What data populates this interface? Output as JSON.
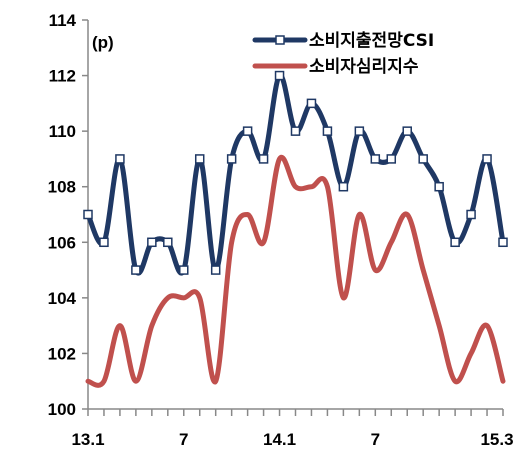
{
  "chart_data": {
    "type": "line",
    "unit_label": "(p)",
    "ylim": [
      100,
      114
    ],
    "yticks": [
      "100",
      "102",
      "104",
      "106",
      "108",
      "110",
      "112",
      "114"
    ],
    "x_tick_labels": [
      {
        "index": 0,
        "label": "13.1"
      },
      {
        "index": 6,
        "label": "7"
      },
      {
        "index": 12,
        "label": "14.1"
      },
      {
        "index": 18,
        "label": "7"
      },
      {
        "index": 26,
        "label": "15.3"
      }
    ],
    "x_count": 27,
    "grid": false,
    "legend_position": "top-right",
    "series": [
      {
        "name": "소비지출전망CSI",
        "color": "#1f3864",
        "markers": true,
        "values": [
          107,
          106,
          109,
          105,
          106,
          106,
          105,
          109,
          105,
          109,
          110,
          109,
          112,
          110,
          111,
          110,
          108,
          110,
          109,
          109,
          110,
          109,
          108,
          106,
          107,
          109,
          106
        ]
      },
      {
        "name": "소비자심리지수",
        "color": "#c0504d",
        "markers": false,
        "values": [
          101,
          101,
          103,
          101,
          103,
          104,
          104,
          104,
          101,
          106,
          107,
          106,
          109,
          108,
          108,
          108,
          104,
          107,
          105,
          106,
          107,
          105,
          103,
          101,
          102,
          103,
          101
        ]
      }
    ]
  }
}
